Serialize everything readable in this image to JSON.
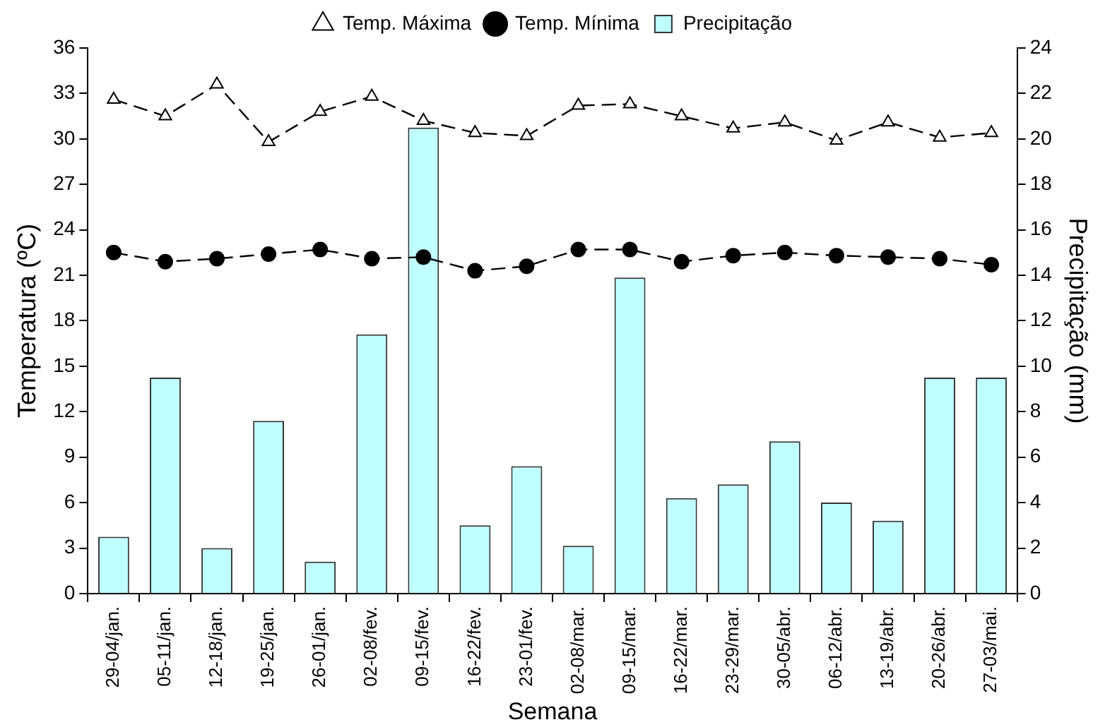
{
  "chart_data": {
    "type": "bar",
    "xlabel": "Semana",
    "ylabel": "Temperatura (ºC)",
    "y2label": "Precipitação (mm)",
    "categories": [
      "29-04/jan.",
      "05-11/jan.",
      "12-18/jan.",
      "19-25/jan.",
      "26-01/jan.",
      "02-08/fev.",
      "09-15/fev.",
      "16-22/fev.",
      "23-01/fev.",
      "02-08/mar.",
      "09-15/mar.",
      "16-22/mar.",
      "23-29/mar.",
      "30-05/abr.",
      "06-12/abr.",
      "13-19/abr.",
      "20-26/abr.",
      "27-03/mai."
    ],
    "series": [
      {
        "name": "Temp. Máxima",
        "type": "line",
        "color": "#000000",
        "marker": "triangle",
        "line_style": "dashed",
        "values": [
          32.6,
          31.5,
          33.6,
          29.8,
          31.8,
          32.8,
          31.2,
          30.4,
          30.2,
          32.2,
          32.3,
          31.5,
          30.7,
          31.1,
          29.9,
          31.1,
          30.1,
          30.4
        ]
      },
      {
        "name": "Temp. Mínima",
        "type": "line",
        "color": "#000000",
        "marker": "circle",
        "line_style": "dashed",
        "values": [
          22.5,
          21.9,
          22.1,
          22.4,
          22.7,
          22.1,
          22.2,
          21.3,
          21.6,
          22.7,
          22.7,
          21.9,
          22.3,
          22.5,
          22.3,
          22.2,
          22.1,
          21.7
        ]
      },
      {
        "name": "Precipitação",
        "axis": "y2",
        "color": "#bfffff",
        "values": [
          2.5,
          9.5,
          2.0,
          7.6,
          1.4,
          11.4,
          20.5,
          3.0,
          5.6,
          2.1,
          13.9,
          4.2,
          4.8,
          6.7,
          4.0,
          3.2,
          9.5,
          9.5
        ]
      }
    ],
    "ylim": [
      0,
      36
    ],
    "yticks": [
      0,
      3,
      6,
      9,
      12,
      15,
      18,
      21,
      24,
      27,
      30,
      33,
      36
    ],
    "y2lim": [
      0,
      24
    ],
    "y2ticks": [
      0,
      2,
      4,
      6,
      8,
      10,
      12,
      14,
      16,
      18,
      20,
      22,
      24
    ],
    "grid": false,
    "legend": "top"
  }
}
